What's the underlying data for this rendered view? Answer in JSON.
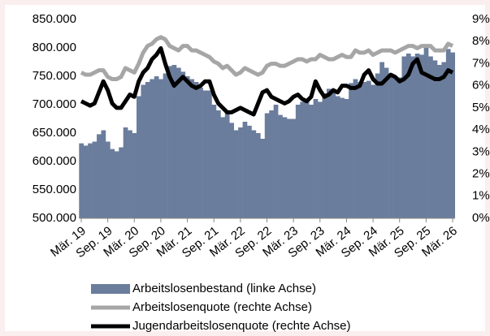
{
  "chart_data": {
    "type": "bar",
    "categories": [
      "Mär. 19",
      null,
      null,
      null,
      null,
      null,
      "Sep. 19",
      null,
      null,
      null,
      null,
      null,
      "Mär. 20",
      null,
      null,
      null,
      null,
      null,
      "Sep. 20",
      null,
      null,
      null,
      null,
      null,
      "Mär. 21",
      null,
      null,
      null,
      null,
      null,
      "Sep. 21",
      null,
      null,
      null,
      null,
      null,
      "Mär. 22",
      null,
      null,
      null,
      null,
      null,
      "Sep. 22",
      null,
      null,
      null,
      null,
      null,
      "Mär. 23",
      null,
      null,
      null,
      null,
      null,
      "Sep. 23",
      null,
      null,
      null,
      null,
      null,
      "Mär. 24",
      null,
      null,
      null,
      null,
      null,
      "Sep. 24",
      null,
      null,
      null,
      null,
      null,
      "Mär. 25",
      null,
      null,
      null,
      null,
      null,
      "Sep. 25",
      null,
      null,
      null,
      null,
      null,
      "Mär. 26"
    ],
    "series": [
      {
        "name": "Arbeitslosenbestand (linke Achse)",
        "type": "bar",
        "color": "#6b7d9c",
        "values": [
          632000,
          628000,
          632000,
          635000,
          648000,
          655000,
          635000,
          622000,
          618000,
          625000,
          660000,
          655000,
          650000,
          715000,
          735000,
          740000,
          745000,
          750000,
          745000,
          755000,
          768000,
          770000,
          765000,
          758000,
          750000,
          745000,
          740000,
          730000,
          725000,
          725000,
          700000,
          690000,
          678000,
          690000,
          668000,
          655000,
          660000,
          670000,
          663000,
          655000,
          650000,
          640000,
          685000,
          690000,
          700000,
          682000,
          678000,
          675000,
          675000,
          700000,
          705000,
          705000,
          700000,
          710000,
          705000,
          720000,
          728000,
          725000,
          715000,
          712000,
          710000,
          738000,
          745000,
          740000,
          740000,
          742000,
          735000,
          755000,
          775000,
          765000,
          755000,
          750000,
          748000,
          785000,
          790000,
          785000,
          790000,
          788000,
          805000,
          785000,
          778000,
          770000,
          775000,
          798000,
          792000
        ]
      },
      {
        "name": "Arbeitslosenquote (rechte Achse)",
        "type": "line",
        "axis": "y2",
        "color": "#a6a6a6",
        "values": [
          6.6,
          6.5,
          6.5,
          6.6,
          6.7,
          6.7,
          6.4,
          6.3,
          6.3,
          6.4,
          6.8,
          6.7,
          6.6,
          7.0,
          7.5,
          7.8,
          7.9,
          8.1,
          8.2,
          8.1,
          7.8,
          7.7,
          7.6,
          7.8,
          7.8,
          7.6,
          7.6,
          7.5,
          7.4,
          7.3,
          7.1,
          7.0,
          6.8,
          6.9,
          6.7,
          6.5,
          6.6,
          6.8,
          6.7,
          6.6,
          6.5,
          6.6,
          6.9,
          7.0,
          7.0,
          6.9,
          6.9,
          7.0,
          7.1,
          7.2,
          7.2,
          7.1,
          7.2,
          7.2,
          7.4,
          7.3,
          7.2,
          7.2,
          7.3,
          7.4,
          7.3,
          7.3,
          7.6,
          7.5,
          7.5,
          7.6,
          7.4,
          7.5,
          7.6,
          7.6,
          7.6,
          7.5,
          7.6,
          7.7,
          7.8,
          7.8,
          7.7,
          7.8,
          7.8,
          7.8,
          7.6,
          7.6,
          7.6,
          7.9,
          7.8
        ]
      },
      {
        "name": "Jugendarbeitslosenquote (rechte Achse)",
        "type": "line",
        "axis": "y2",
        "color": "#000000",
        "values": [
          5.3,
          5.2,
          5.1,
          5.2,
          5.7,
          6.2,
          5.8,
          5.2,
          5.0,
          5.0,
          5.3,
          5.6,
          5.5,
          6.2,
          6.6,
          6.8,
          7.2,
          7.4,
          7.7,
          7.0,
          6.4,
          6.0,
          6.2,
          6.4,
          6.2,
          6.0,
          5.9,
          6.0,
          6.2,
          6.2,
          5.6,
          5.2,
          5.0,
          4.8,
          4.8,
          4.9,
          5.0,
          4.9,
          4.8,
          4.7,
          5.2,
          5.7,
          5.8,
          5.5,
          5.4,
          5.3,
          5.2,
          5.3,
          5.5,
          5.6,
          5.4,
          5.3,
          5.5,
          6.2,
          5.8,
          5.5,
          5.6,
          5.8,
          5.7,
          6.0,
          6.0,
          5.9,
          5.9,
          6.0,
          6.5,
          6.7,
          6.3,
          6.1,
          6.1,
          6.3,
          6.5,
          6.4,
          6.2,
          6.3,
          6.5,
          7.0,
          7.2,
          6.6,
          6.5,
          6.4,
          6.3,
          6.3,
          6.4,
          6.7,
          6.6
        ]
      }
    ],
    "ylim": [
      500000,
      850000
    ],
    "yticks": [
      {
        "value": 500000,
        "label": "500.000"
      },
      {
        "value": 550000,
        "label": "550.000"
      },
      {
        "value": 600000,
        "label": "600.000"
      },
      {
        "value": 650000,
        "label": "650.000"
      },
      {
        "value": 700000,
        "label": "700.000"
      },
      {
        "value": 750000,
        "label": "750.000"
      },
      {
        "value": 800000,
        "label": "800.000"
      },
      {
        "value": 850000,
        "label": "850.000"
      }
    ],
    "y2lim": [
      0,
      9
    ],
    "y2ticks": [
      {
        "value": 0,
        "label": "0%"
      },
      {
        "value": 1,
        "label": "1%"
      },
      {
        "value": 2,
        "label": "2%"
      },
      {
        "value": 3,
        "label": "3%"
      },
      {
        "value": 4,
        "label": "4%"
      },
      {
        "value": 5,
        "label": "5%"
      },
      {
        "value": 6,
        "label": "6%"
      },
      {
        "value": 7,
        "label": "7%"
      },
      {
        "value": 8,
        "label": "8%"
      },
      {
        "value": 9,
        "label": "9%"
      }
    ],
    "grid": false,
    "legend": "bottom"
  }
}
